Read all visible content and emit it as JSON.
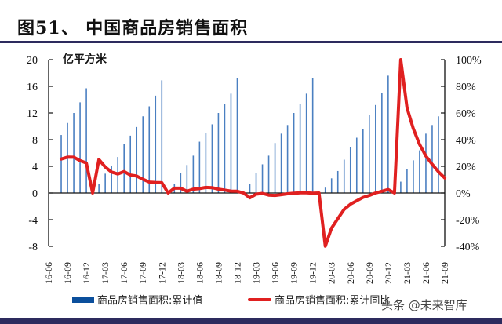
{
  "header": {
    "title": "图51、 中国商品房销售面积"
  },
  "legend": {
    "bar_label": "商品房销售面积:累计值",
    "line_label": "商品房销售面积:累计同比"
  },
  "watermark": "头条 @未来智库",
  "colors": {
    "bar": "#4a7fc1",
    "line": "#e02020",
    "rule": "#2d2b5e"
  },
  "chart_data": {
    "type": "bar+line",
    "title": "中国商品房销售面积",
    "left_unit": "亿平方米",
    "left_axis": {
      "ylim": [
        -8,
        20
      ],
      "ticks": [
        20,
        16,
        12,
        8,
        4,
        0,
        -4,
        -8
      ]
    },
    "right_axis": {
      "ylim": [
        -40,
        100
      ],
      "ticks": [
        "100%",
        "80%",
        "60%",
        "40%",
        "20%",
        "0%",
        "-20%",
        "-40%"
      ]
    },
    "x_tick_labels": [
      "16-06",
      "16-09",
      "16-12",
      "17-03",
      "17-06",
      "17-09",
      "17-12",
      "18-03",
      "18-06",
      "18-09",
      "18-12",
      "19-03",
      "19-06",
      "19-09",
      "19-12",
      "20-03",
      "20-06",
      "20-09",
      "20-12",
      "21-03",
      "21-06",
      "21-09"
    ],
    "months": [
      "16-06",
      "16-07",
      "16-08",
      "16-09",
      "16-10",
      "16-11",
      "16-12",
      "17-01",
      "17-02",
      "17-03",
      "17-04",
      "17-05",
      "17-06",
      "17-07",
      "17-08",
      "17-09",
      "17-10",
      "17-11",
      "17-12",
      "18-01",
      "18-02",
      "18-03",
      "18-04",
      "18-05",
      "18-06",
      "18-07",
      "18-08",
      "18-09",
      "18-10",
      "18-11",
      "18-12",
      "19-01",
      "19-02",
      "19-03",
      "19-04",
      "19-05",
      "19-06",
      "19-07",
      "19-08",
      "19-09",
      "19-10",
      "19-11",
      "19-12",
      "20-01",
      "20-02",
      "20-03",
      "20-04",
      "20-05",
      "20-06",
      "20-07",
      "20-08",
      "20-09",
      "20-10",
      "20-11",
      "20-12",
      "21-01",
      "21-02",
      "21-03",
      "21-04",
      "21-05",
      "21-06",
      "21-07",
      "21-08",
      "21-09"
    ],
    "series": [
      {
        "name": "商品房销售面积:累计值",
        "type": "bar",
        "axis": "left",
        "values": [
          null,
          null,
          8.7,
          10.5,
          12.0,
          13.6,
          15.7,
          null,
          1.3,
          2.9,
          4.1,
          5.4,
          7.4,
          8.6,
          9.9,
          11.5,
          13.0,
          14.6,
          16.9,
          null,
          1.3,
          3.0,
          4.2,
          5.6,
          7.7,
          9.0,
          10.3,
          12.0,
          13.3,
          14.9,
          17.2,
          null,
          1.3,
          3.0,
          4.3,
          5.6,
          7.5,
          8.9,
          10.2,
          12.0,
          13.3,
          14.9,
          17.2,
          null,
          0.8,
          2.2,
          3.3,
          5.0,
          6.9,
          8.3,
          9.6,
          11.7,
          13.2,
          15.0,
          17.6,
          null,
          1.7,
          3.6,
          4.9,
          6.4,
          8.9,
          10.2,
          11.5,
          null
        ]
      },
      {
        "name": "商品房销售面积:累计同比",
        "type": "line",
        "axis": "right",
        "values": [
          null,
          null,
          25.5,
          26.9,
          26.8,
          24.3,
          22.5,
          0,
          25.1,
          19.5,
          15.7,
          14.3,
          16.1,
          13.5,
          12.7,
          10.3,
          8.2,
          7.9,
          7.7,
          0,
          3.6,
          3.6,
          1.3,
          2.9,
          3.3,
          4.2,
          4.0,
          2.9,
          2.2,
          1.4,
          1.3,
          0,
          -3.6,
          -0.9,
          -0.3,
          -1.6,
          -1.8,
          -1.3,
          -0.6,
          -0.1,
          0.1,
          0.2,
          -0.1,
          0,
          -39.9,
          -26.3,
          -19.3,
          -12.3,
          -8.4,
          -5.8,
          -3.3,
          -1.8,
          0,
          1.3,
          2.6,
          0,
          104.9,
          63.8,
          48.3,
          36.4,
          27.7,
          21.5,
          15.9,
          11.3
        ]
      }
    ]
  }
}
